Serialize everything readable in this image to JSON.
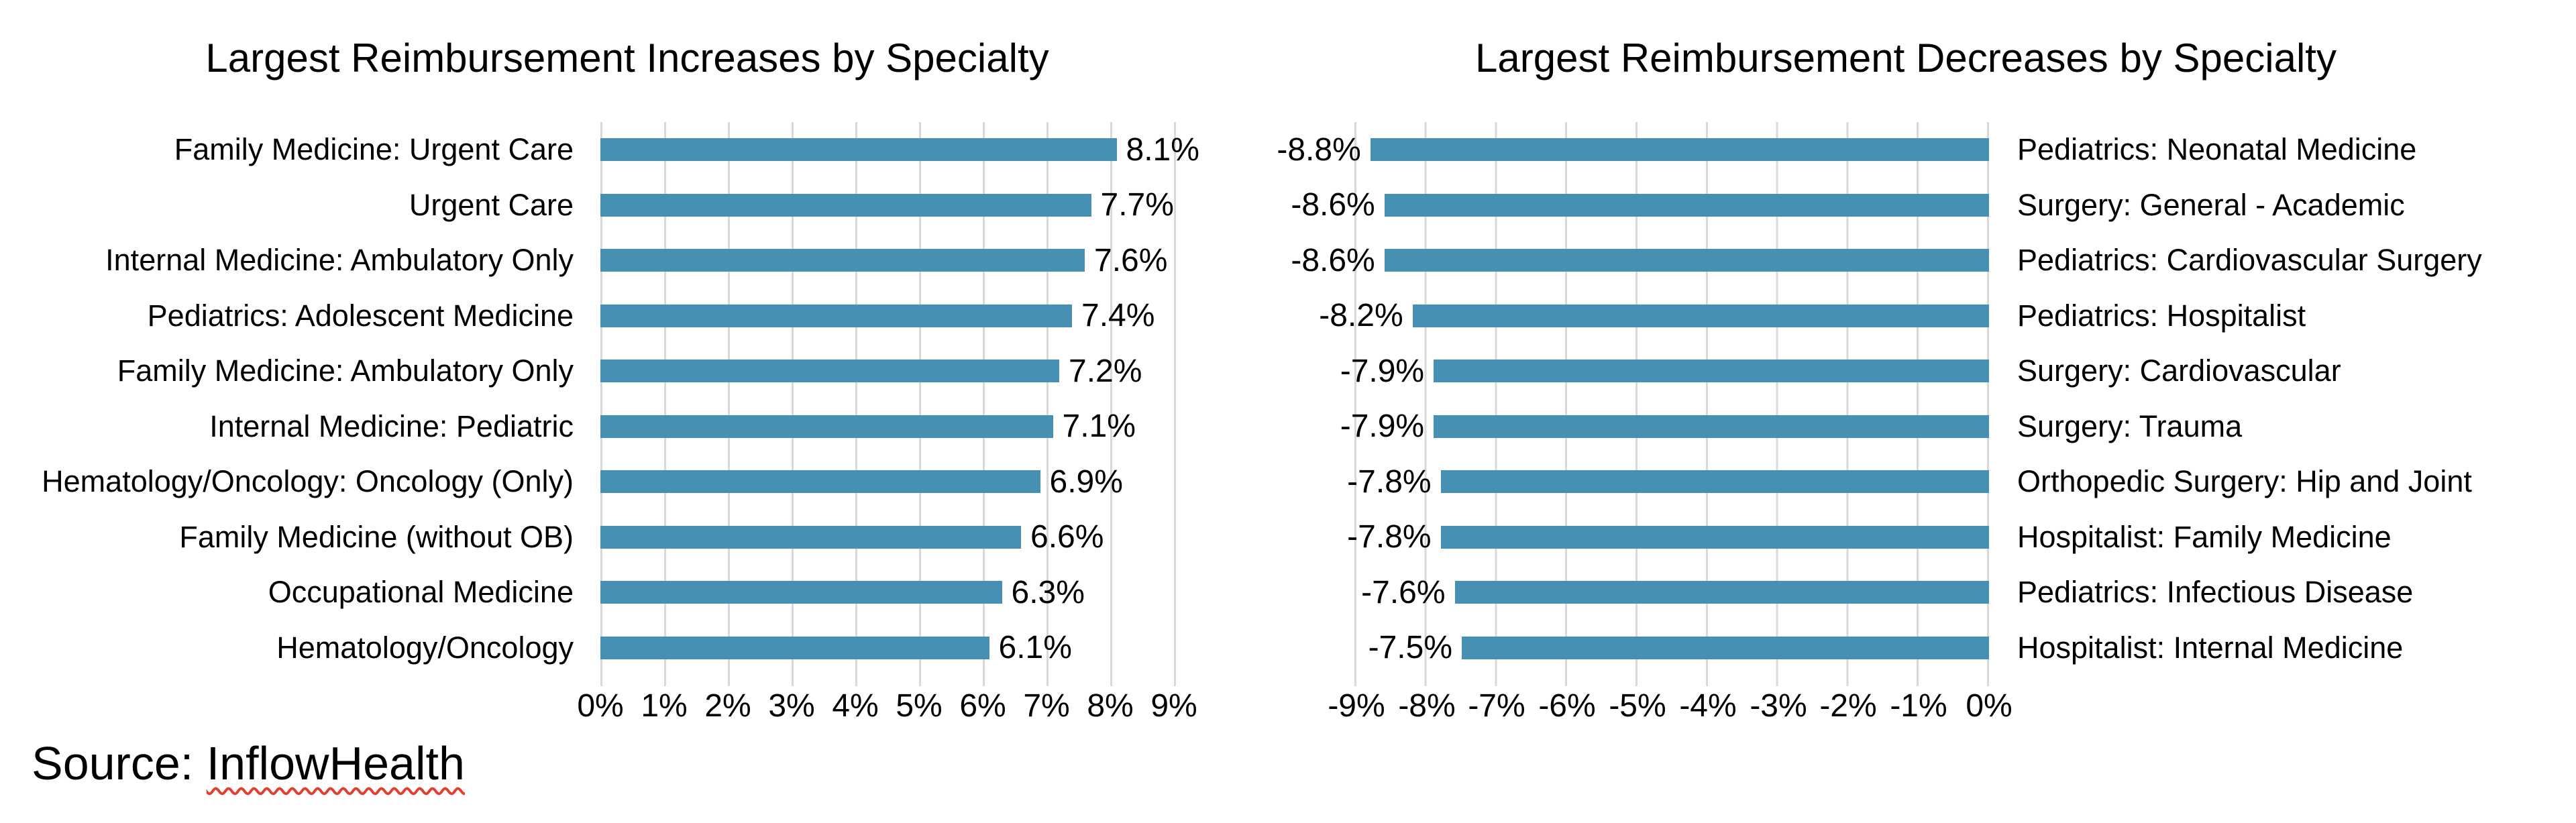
{
  "source": {
    "prefix": "Source: ",
    "name": "InflowHealth"
  },
  "colors": {
    "bar": "#4691b3",
    "gridline": "#d9d9d9",
    "text": "#000000",
    "squiggle_underline": "#e0402e"
  },
  "chart_data": [
    {
      "id": "increases",
      "type": "bar",
      "orientation": "horizontal",
      "title": "Largest Reimbursement Increases by Specialty",
      "categories": [
        "Family Medicine: Urgent Care",
        "Urgent Care",
        "Internal Medicine: Ambulatory Only",
        "Pediatrics: Adolescent Medicine",
        "Family Medicine: Ambulatory Only",
        "Internal Medicine: Pediatric",
        "Hematology/Oncology: Oncology (Only)",
        "Family Medicine (without OB)",
        "Occupational Medicine",
        "Hematology/Oncology"
      ],
      "values": [
        8.1,
        7.7,
        7.6,
        7.4,
        7.2,
        7.1,
        6.9,
        6.6,
        6.3,
        6.1
      ],
      "value_labels": [
        "8.1%",
        "7.7%",
        "7.6%",
        "7.4%",
        "7.2%",
        "7.1%",
        "6.9%",
        "6.6%",
        "6.3%",
        "6.1%"
      ],
      "axis": {
        "min": 0,
        "max": 9,
        "step": 1,
        "tick_labels": [
          "0%",
          "1%",
          "2%",
          "3%",
          "4%",
          "5%",
          "6%",
          "7%",
          "8%",
          "9%"
        ]
      },
      "layout_hints": {
        "grid": true,
        "value_label_position": "outside-end-right",
        "category_label_side": "left"
      }
    },
    {
      "id": "decreases",
      "type": "bar",
      "orientation": "horizontal",
      "title": "Largest Reimbursement Decreases by Specialty",
      "categories": [
        "Pediatrics: Neonatal Medicine",
        "Surgery: General - Academic",
        "Pediatrics: Cardiovascular Surgery",
        "Pediatrics: Hospitalist",
        "Surgery: Cardiovascular",
        "Surgery: Trauma",
        "Orthopedic Surgery: Hip and Joint",
        "Hospitalist: Family Medicine",
        "Pediatrics: Infectious Disease",
        "Hospitalist: Internal Medicine"
      ],
      "values": [
        -8.8,
        -8.6,
        -8.6,
        -8.2,
        -7.9,
        -7.9,
        -7.8,
        -7.8,
        -7.6,
        -7.5
      ],
      "value_labels": [
        "-8.8%",
        "-8.6%",
        "-8.6%",
        "-8.2%",
        "-7.9%",
        "-7.9%",
        "-7.8%",
        "-7.8%",
        "-7.6%",
        "-7.5%"
      ],
      "axis": {
        "min": -9,
        "max": 0,
        "step": 1,
        "tick_labels": [
          "-9%",
          "-8%",
          "-7%",
          "-6%",
          "-5%",
          "-4%",
          "-3%",
          "-2%",
          "-1%",
          "0%"
        ]
      },
      "layout_hints": {
        "grid": true,
        "value_label_position": "outside-end-left",
        "category_label_side": "right"
      }
    }
  ]
}
